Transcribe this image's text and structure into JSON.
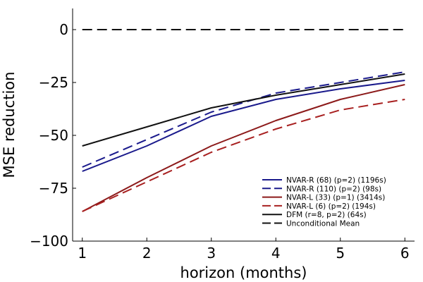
{
  "chart_data": {
    "type": "line",
    "title": "",
    "xlabel": "horizon (months)",
    "ylabel": "MSE reduction",
    "x": [
      1,
      2,
      3,
      4,
      5,
      6
    ],
    "xticks": [
      1,
      2,
      3,
      4,
      5,
      6
    ],
    "yticks": [
      0,
      -25,
      -50,
      -75,
      -100
    ],
    "ytick_labels": [
      "0",
      "−25",
      "−50",
      "−75",
      "−100"
    ],
    "xlim": [
      0.85,
      6.15
    ],
    "ylim": [
      -100,
      10
    ],
    "grid": false,
    "legend_position": "bottom-right",
    "series": [
      {
        "name": "NVAR-R (68) (p=2) (1196s)",
        "color": "#1a1a8c",
        "dash": "solid",
        "values": [
          -67,
          -55,
          -41,
          -33,
          -28,
          -24
        ]
      },
      {
        "name": "NVAR-R (110) (p=2) (98s)",
        "color": "#1a1a8c",
        "dash": "dashed",
        "values": [
          -65,
          -52,
          -39,
          -30,
          -25,
          -20
        ]
      },
      {
        "name": "NVAR-L (33) (p=1) (3414s)",
        "color": "#8c1a1a",
        "dash": "solid",
        "values": [
          -86,
          -70,
          -55,
          -43,
          -33,
          -26
        ]
      },
      {
        "name": "NVAR-L (6) (p=2) (194s)",
        "color": "#a82020",
        "dash": "dashed",
        "values": [
          -86,
          -72,
          -58,
          -47,
          -38,
          -33
        ]
      },
      {
        "name": "DFM (r=8, p=2) (64s)",
        "color": "#111111",
        "dash": "solid",
        "values": [
          -55,
          -46,
          -37,
          -31,
          -26,
          -21
        ]
      },
      {
        "name": "Unconditional Mean",
        "color": "#111111",
        "dash": "dashed",
        "values": [
          0,
          0,
          0,
          0,
          0,
          0
        ]
      }
    ]
  }
}
